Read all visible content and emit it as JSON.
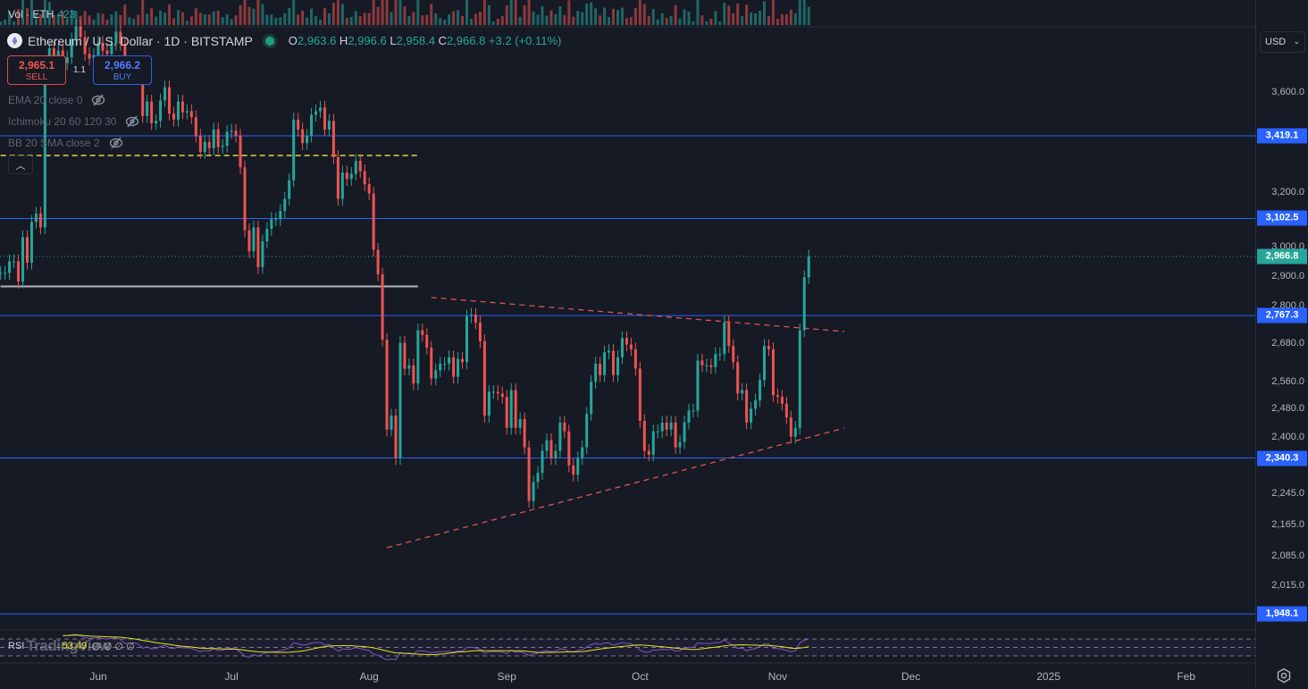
{
  "header": {
    "title": "Ethereum / U.S. Dollar · 1D · BITSTAMP",
    "ohlc": {
      "o_label": "O",
      "o": "2,963.6",
      "h_label": "H",
      "h": "2,996.6",
      "l_label": "L",
      "l": "2,958.4",
      "c_label": "C",
      "c": "2,966.8",
      "change": "+3.2 (+0.11%)"
    }
  },
  "trade": {
    "sell_price": "2,965.1",
    "sell_label": "SELL",
    "spread": "1.1",
    "buy_price": "2,966.2",
    "buy_label": "BUY"
  },
  "volume": {
    "label": "Vol · ETH",
    "value": "423"
  },
  "indicators": [
    {
      "label": "EMA 20 close 0"
    },
    {
      "label": "Ichimoku 20 60 120 30"
    },
    {
      "label": "BB 20 SMA close 2"
    }
  ],
  "rsi": {
    "label": "RSI",
    "watermark": "TradingView",
    "value": "53.49",
    "extras": "∅  ∅  ∅  ∅",
    "levels": [
      70,
      50,
      30
    ]
  },
  "currency": "USD",
  "colors": {
    "up": "#26a69a",
    "down": "#ef5350",
    "hline": "#2962ff",
    "bg": "#161a25",
    "rsi": "#7e57c2",
    "rsi_ma": "#e5e31f"
  },
  "icons": {
    "symbol": "ethereum-icon",
    "market_status": "green-dot-icon",
    "hidden": "eye-off-icon",
    "collapse": "chevron-up-icon",
    "settings": "gear-icon"
  },
  "chart_data": {
    "type": "candlestick",
    "scale": "log",
    "symbol": "ETHUSD",
    "interval": "1D",
    "start_date": "2024-05-10",
    "close": [
      2910,
      2910,
      2950,
      2950,
      2880,
      3035,
      2945,
      3090,
      3120,
      3070,
      3660,
      3790,
      3735,
      3780,
      3725,
      3750,
      3830,
      3890,
      3840,
      3765,
      3745,
      3760,
      3815,
      3780,
      3765,
      3810,
      3865,
      3810,
      3680,
      3685,
      3705,
      3665,
      3500,
      3560,
      3470,
      3480,
      3565,
      3620,
      3510,
      3485,
      3560,
      3515,
      3520,
      3495,
      3420,
      3355,
      3395,
      3370,
      3445,
      3375,
      3380,
      3435,
      3440,
      3420,
      3295,
      3060,
      2985,
      3070,
      2930,
      3020,
      3065,
      3100,
      3100,
      3130,
      3175,
      3245,
      3485,
      3445,
      3390,
      3420,
      3505,
      3520,
      3535,
      3445,
      3480,
      3335,
      3175,
      3275,
      3250,
      3270,
      3320,
      3280,
      3230,
      3195,
      2990,
      2905,
      2690,
      2420,
      2460,
      2340,
      2680,
      2600,
      2610,
      2555,
      2720,
      2705,
      2665,
      2570,
      2595,
      2615,
      2615,
      2635,
      2575,
      2630,
      2620,
      2765,
      2770,
      2745,
      2685,
      2460,
      2530,
      2530,
      2525,
      2515,
      2425,
      2535,
      2425,
      2450,
      2370,
      2225,
      2275,
      2300,
      2360,
      2390,
      2340,
      2360,
      2440,
      2415,
      2320,
      2295,
      2340,
      2370,
      2465,
      2560,
      2615,
      2580,
      2650,
      2655,
      2580,
      2635,
      2695,
      2675,
      2660,
      2600,
      2445,
      2360,
      2350,
      2415,
      2415,
      2440,
      2420,
      2440,
      2370,
      2385,
      2440,
      2475,
      2475,
      2625,
      2610,
      2610,
      2605,
      2645,
      2645,
      2745,
      2670,
      2620,
      2525,
      2535,
      2440,
      2480,
      2505,
      2565,
      2670,
      2660,
      2520,
      2515,
      2495,
      2455,
      2400,
      2425,
      2720,
      2895,
      2966.8
    ],
    "extremes": {
      "2024-05-20": {
        "low": 3050
      },
      "2024-06-24": {
        "low": 3240
      },
      "2024-07-05": {
        "low": 2810
      },
      "2024-08-05": {
        "low": 2111,
        "high": 2890
      },
      "2024-09-06": {
        "low": 2150
      },
      "2024-11-04": {
        "low": 2357
      },
      "2024-11-08": {
        "open": 2963.6,
        "high": 2996.6,
        "low": 2958.4
      }
    },
    "horizontal_levels": [
      {
        "price": 3419.1,
        "label": "3,419.1"
      },
      {
        "price": 3102.5,
        "label": "3,102.5"
      },
      {
        "price": 2767.3,
        "label": "2,767.3"
      },
      {
        "price": 2340.3,
        "label": "2,340.3"
      },
      {
        "price": 1948.1,
        "label": "1,948.1"
      }
    ],
    "last_price": {
      "price": 2966.8,
      "label": "2,966.8"
    },
    "segments": [
      {
        "type": "dashed",
        "color": "#e5d145",
        "from": [
          "2024-05-10",
          3341
        ],
        "to": [
          "2024-08-12",
          3341
        ]
      },
      {
        "type": "solid",
        "color": "#b2b5be",
        "from": [
          "2024-05-10",
          2864
        ],
        "to": [
          "2024-08-12",
          2864
        ]
      }
    ],
    "trendlines": [
      {
        "from": [
          "2024-08-15",
          2827
        ],
        "to": [
          "2024-11-16",
          2716
        ]
      },
      {
        "from": [
          "2024-08-05",
          2106
        ],
        "to": [
          "2024-11-16",
          2424
        ]
      }
    ],
    "y_ticks": [
      "3,600.0",
      "3,200.0",
      "3,000.0",
      "2,900.0",
      "2,800.0",
      "2,680.0",
      "2,560.0",
      "2,480.0",
      "2,400.0",
      "2,245.0",
      "2,165.0",
      "2,085.0",
      "2,015.0"
    ],
    "x_ticks": [
      {
        "date": "2024-06-01",
        "label": "Jun"
      },
      {
        "date": "2024-07-01",
        "label": "Jul"
      },
      {
        "date": "2024-08-01",
        "label": "Aug"
      },
      {
        "date": "2024-09-01",
        "label": "Sep"
      },
      {
        "date": "2024-10-01",
        "label": "Oct"
      },
      {
        "date": "2024-11-01",
        "label": "Nov"
      },
      {
        "date": "2024-12-01",
        "label": "Dec"
      },
      {
        "date": "2025-01-01",
        "label": "2025"
      },
      {
        "date": "2025-02-01",
        "label": "Feb"
      }
    ]
  }
}
